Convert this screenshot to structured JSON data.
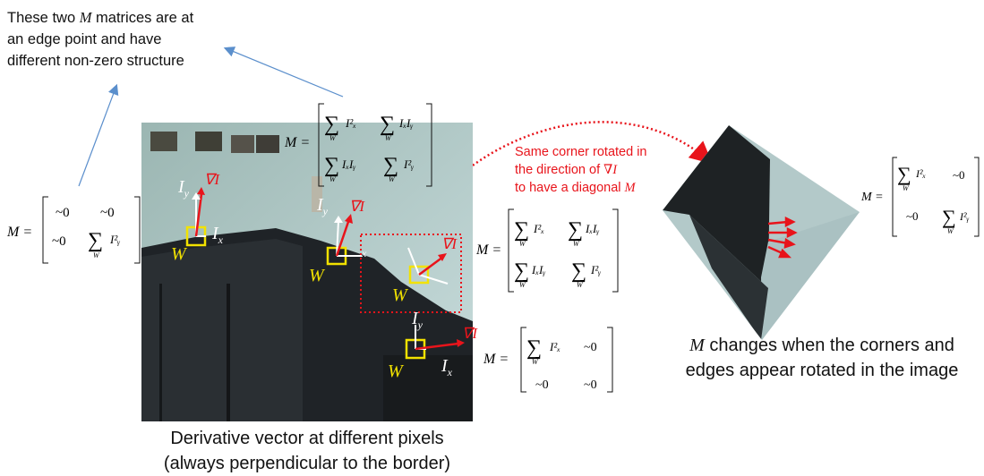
{
  "top_note": {
    "line1_a": "These two ",
    "line1_m": "M",
    "line1_b": " matrices are at",
    "line2": "an edge point and have",
    "line3": "different non-zero structure"
  },
  "rotated_note": {
    "line1": "Same corner rotated in",
    "line2_a": "the direction of ",
    "line2_grad": "∇I",
    "line3_a": "to have a diagonal ",
    "line3_m": "M"
  },
  "caption_left": {
    "line1": "Derivative vector at different pixels",
    "line2": "(always perpendicular to the border)"
  },
  "caption_right": {
    "line1_m": "M",
    "line1_rest": " changes when the corners and",
    "line2": "edges appear rotated in the image"
  },
  "labels": {
    "W": "W",
    "Ix": "I",
    "Ix_sub": "x",
    "Iy": "I",
    "Iy_sub": "y",
    "grad": "∇I",
    "M_eq": "M =",
    "approx_zero": "~0",
    "sum_sub_W": "W",
    "Ix2": "I²ₓ",
    "Iy2": "I²ᵧ",
    "IxIy": "IₓIᵧ"
  },
  "colors": {
    "red": "#e8141b",
    "yellow": "#f2e200",
    "blue_arrow": "#5b8fcc",
    "dotted_red": "#e8141b"
  }
}
